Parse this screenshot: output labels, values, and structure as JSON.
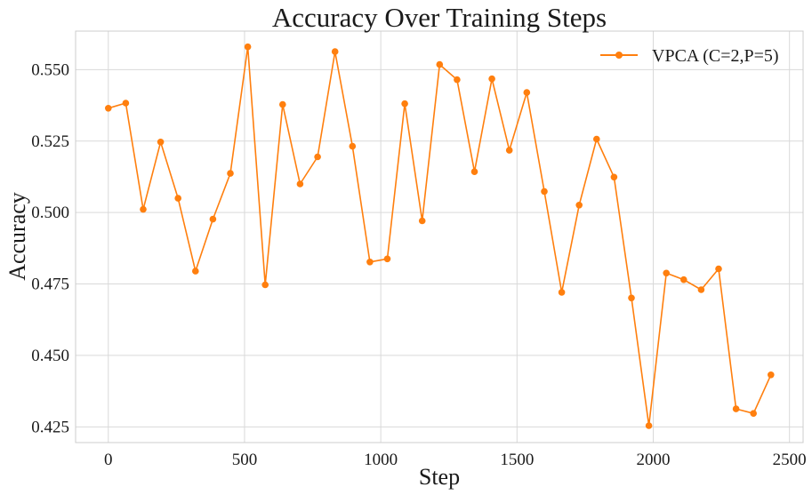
{
  "chart_data": {
    "type": "line",
    "title": "Accuracy Over Training Steps",
    "xlabel": "Step",
    "ylabel": "Accuracy",
    "xlim": [
      -120,
      2550
    ],
    "ylim": [
      0.4195,
      0.5635
    ],
    "xticks": [
      0,
      500,
      1000,
      1500,
      2000,
      2500
    ],
    "yticks": [
      0.425,
      0.45,
      0.475,
      0.5,
      0.525,
      0.55
    ],
    "ytick_labels": [
      "0.425",
      "0.450",
      "0.475",
      "0.500",
      "0.525",
      "0.550"
    ],
    "grid": true,
    "legend_position": "top-right",
    "series": [
      {
        "name": "VPCA (C=2,P=5)",
        "color": "#ff7f0e",
        "x": [
          0,
          64,
          128,
          192,
          256,
          320,
          384,
          448,
          512,
          576,
          640,
          704,
          768,
          832,
          896,
          960,
          1024,
          1088,
          1152,
          1216,
          1280,
          1344,
          1408,
          1472,
          1536,
          1600,
          1664,
          1728,
          1792,
          1856,
          1920,
          1984,
          2048,
          2112,
          2176,
          2240,
          2304,
          2368,
          2432
        ],
        "y": [
          0.5365,
          0.5383,
          0.5011,
          0.5247,
          0.505,
          0.4795,
          0.4977,
          0.5137,
          0.558,
          0.4747,
          0.5378,
          0.51,
          0.5195,
          0.5563,
          0.5232,
          0.4827,
          0.4838,
          0.5381,
          0.4971,
          0.5518,
          0.5465,
          0.5143,
          0.5468,
          0.5218,
          0.542,
          0.5074,
          0.4721,
          0.5026,
          0.5257,
          0.5124,
          0.4701,
          0.4254,
          0.4788,
          0.4765,
          0.473,
          0.4803,
          0.4313,
          0.4297,
          0.4432
        ]
      }
    ]
  }
}
